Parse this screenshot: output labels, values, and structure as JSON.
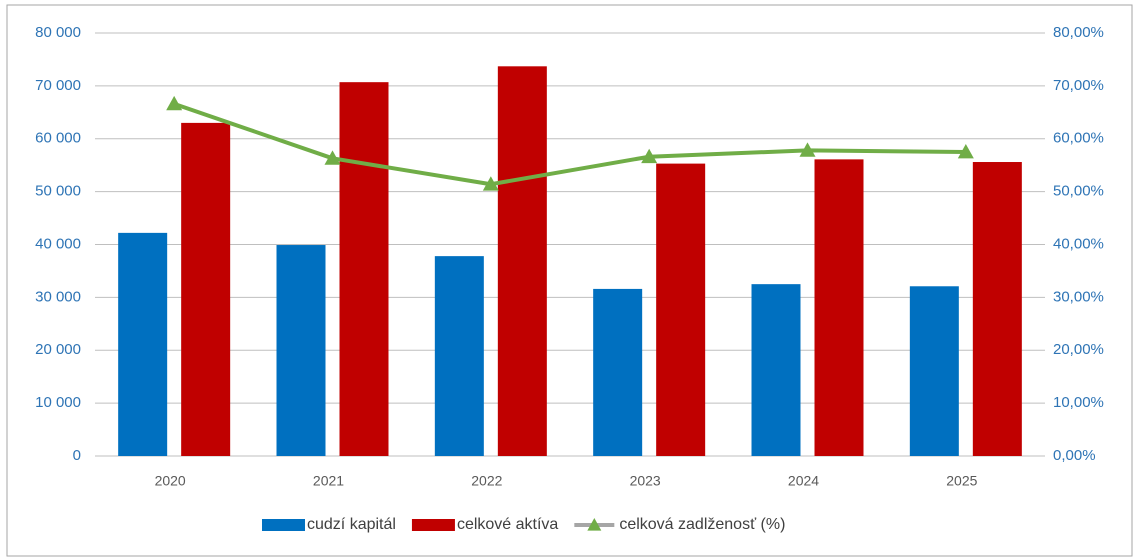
{
  "chart_data": {
    "type": "bar",
    "categories": [
      "2020",
      "2021",
      "2022",
      "2023",
      "2024",
      "2025"
    ],
    "series": [
      {
        "name": "cudzí kapitál",
        "type": "bar",
        "color": "#0070c0",
        "values": [
          42200,
          39900,
          37800,
          31600,
          32500,
          32100
        ]
      },
      {
        "name": "celkové aktíva",
        "type": "bar",
        "color": "#c00000",
        "values": [
          63000,
          70700,
          73700,
          55300,
          56100,
          55600
        ]
      },
      {
        "name": "celková zadlženosť (%)",
        "type": "line",
        "axis": "y2",
        "color": "#70ad47",
        "marker": "triangle",
        "values": [
          66.6,
          56.3,
          51.4,
          56.6,
          57.8,
          57.5
        ]
      }
    ],
    "ylim": [
      0,
      80000
    ],
    "yticks": [
      0,
      {
        "value": 10000,
        "label": "10 000"
      },
      {
        "value": 20000,
        "label": "20 000"
      },
      {
        "value": 30000,
        "label": "30 000"
      },
      {
        "value": 40000,
        "label": "40 000"
      },
      {
        "value": 50000,
        "label": "50 000"
      },
      {
        "value": 60000,
        "label": "60 000"
      },
      {
        "value": 70000,
        "label": "70 000"
      },
      {
        "value": 80000,
        "label": "80 000"
      }
    ],
    "y2lim": [
      0,
      80
    ],
    "y2ticks": [
      {
        "value": 0,
        "label": "0,00%"
      },
      {
        "value": 10,
        "label": "10,00%"
      },
      {
        "value": 20,
        "label": "20,00%"
      },
      {
        "value": 30,
        "label": "30,00%"
      },
      {
        "value": 40,
        "label": "40,00%"
      },
      {
        "value": 50,
        "label": "50,00%"
      },
      {
        "value": 60,
        "label": "60,00%"
      },
      {
        "value": 70,
        "label": "70,00%"
      },
      {
        "value": 80,
        "label": "80,00%"
      }
    ],
    "grid": true,
    "legend": "bottom"
  }
}
